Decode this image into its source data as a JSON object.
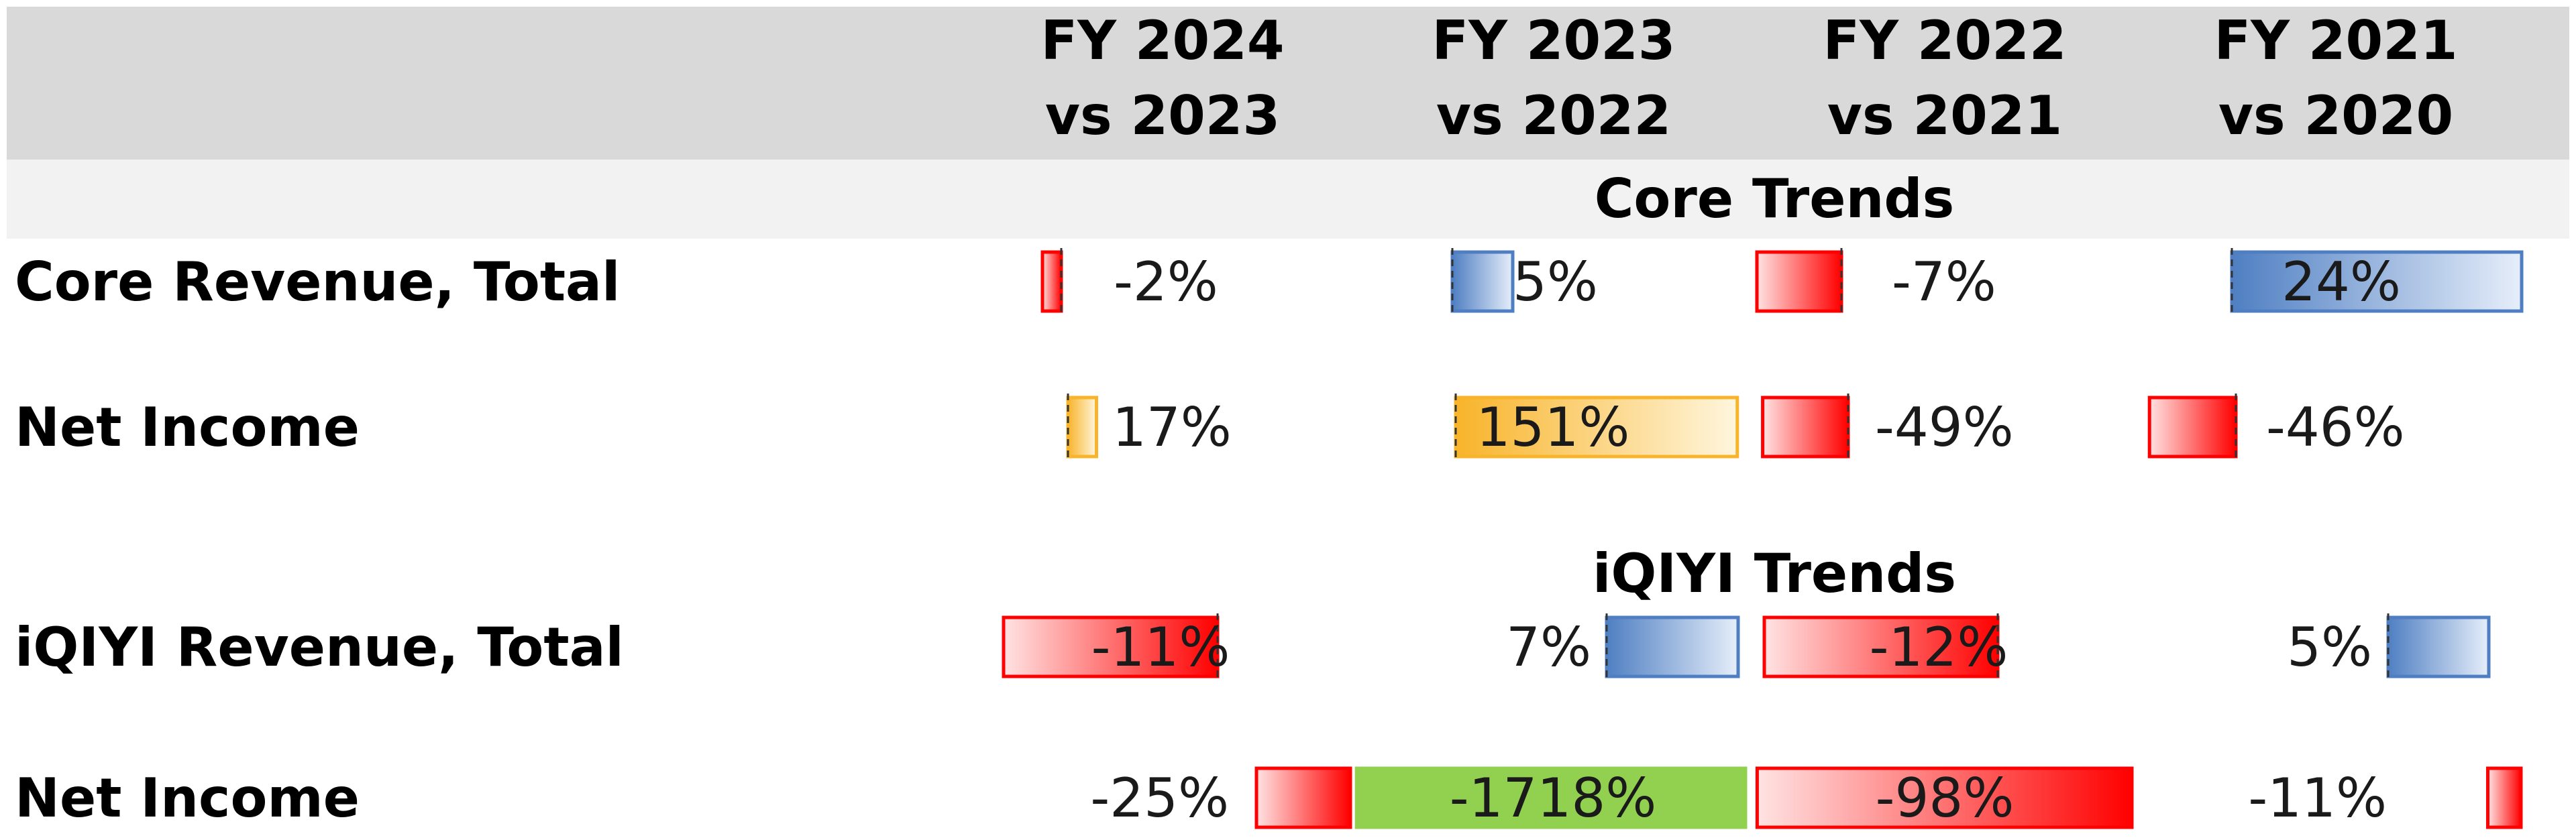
{
  "chart_data": {
    "type": "table",
    "columns": [
      "FY 2024\nvs 2023",
      "FY 2023\nvs 2022",
      "FY 2022\nvs 2021",
      "FY 2021\nvs 2020"
    ],
    "sections": [
      {
        "title": "Core Trends",
        "rows": [
          {
            "label": "Core Revenue, Total",
            "values": [
              -2,
              5,
              -7,
              24
            ],
            "labels": [
              "-2%",
              "5%",
              "-7%",
              "24%"
            ]
          },
          {
            "label": "Net Income",
            "values": [
              17,
              151,
              -49,
              -46
            ],
            "labels": [
              "17%",
              "151%",
              "-49%",
              "-46%"
            ]
          }
        ]
      },
      {
        "title": "iQIYI Trends",
        "rows": [
          {
            "label": "iQIYI Revenue, Total",
            "values": [
              -11,
              7,
              -12,
              5
            ],
            "labels": [
              "-11%",
              "7%",
              "-12%",
              "5%"
            ]
          },
          {
            "label": "Net Income",
            "values": [
              -25,
              -1718,
              -98,
              -11
            ],
            "labels": [
              "-25%",
              "-1718%",
              "-98%",
              "-11%"
            ]
          }
        ]
      }
    ],
    "colors": {
      "negative": "#ff0000",
      "positive": "#4f7fc2",
      "net_income_positive": "#f8b42a",
      "highlight_green": "#92d050",
      "header_bg": "#d9d9d9",
      "section_bg": "#f2f2f2"
    }
  }
}
